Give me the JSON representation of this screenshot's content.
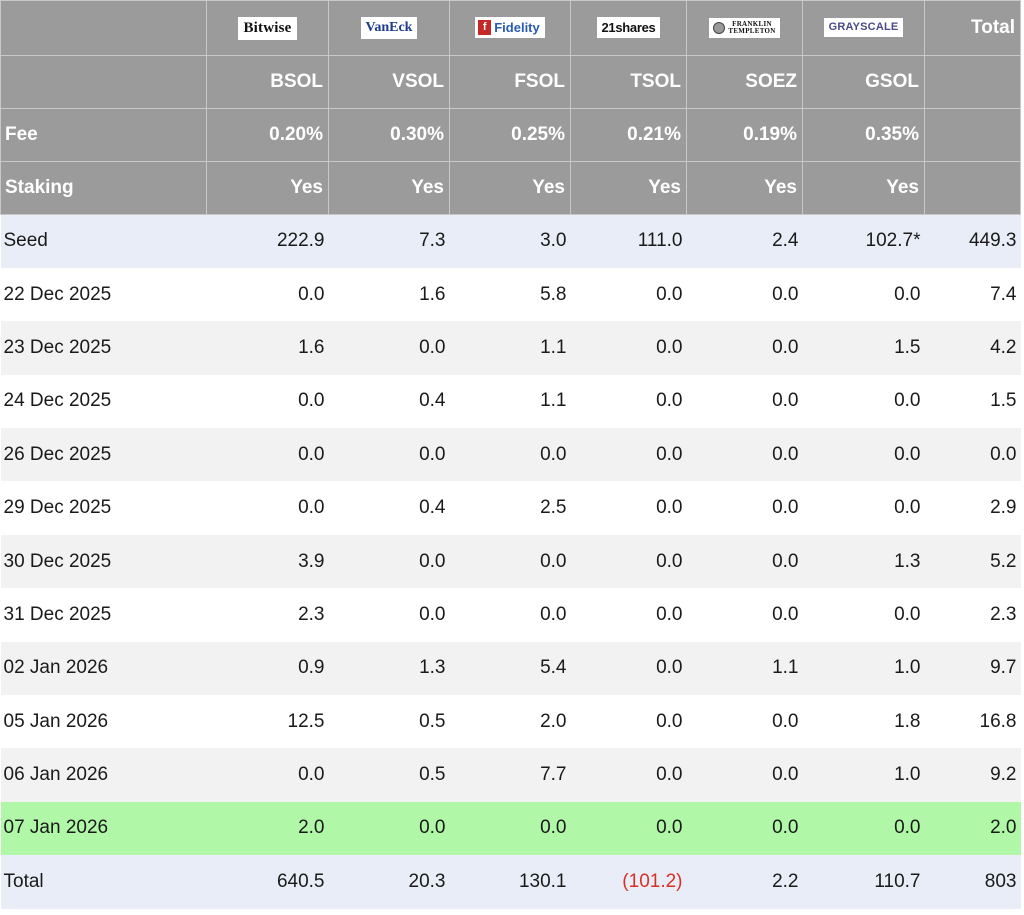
{
  "header": {
    "issuers": [
      {
        "logo_text": "Bitwise",
        "ticker": "BSOL",
        "fee": "0.20%",
        "staking": "Yes",
        "icon": "bitwise-logo"
      },
      {
        "logo_text": "VanEck",
        "ticker": "VSOL",
        "fee": "0.30%",
        "staking": "Yes",
        "icon": "vaneck-logo"
      },
      {
        "logo_text": "Fidelity",
        "ticker": "FSOL",
        "fee": "0.25%",
        "staking": "Yes",
        "icon": "fidelity-logo"
      },
      {
        "logo_text": "21shares",
        "ticker": "TSOL",
        "fee": "0.21%",
        "staking": "Yes",
        "icon": "21shares-logo"
      },
      {
        "logo_text": "FRANKLIN TEMPLETON",
        "ticker": "SOEZ",
        "fee": "0.19%",
        "staking": "Yes",
        "icon": "franklin-templeton-logo"
      },
      {
        "logo_text": "GRAYSCALE",
        "ticker": "GSOL",
        "fee": "0.35%",
        "staking": "Yes",
        "icon": "grayscale-logo"
      }
    ],
    "total_label": "Total",
    "fee_label": "Fee",
    "staking_label": "Staking"
  },
  "rows": [
    {
      "label": "Seed",
      "values": [
        "222.9",
        "7.3",
        "3.0",
        "111.0",
        "2.4",
        "102.7*"
      ],
      "total": "449.3"
    },
    {
      "label": "22 Dec 2025",
      "values": [
        "0.0",
        "1.6",
        "5.8",
        "0.0",
        "0.0",
        "0.0"
      ],
      "total": "7.4"
    },
    {
      "label": "23 Dec 2025",
      "values": [
        "1.6",
        "0.0",
        "1.1",
        "0.0",
        "0.0",
        "1.5"
      ],
      "total": "4.2"
    },
    {
      "label": "24 Dec 2025",
      "values": [
        "0.0",
        "0.4",
        "1.1",
        "0.0",
        "0.0",
        "0.0"
      ],
      "total": "1.5"
    },
    {
      "label": "26 Dec 2025",
      "values": [
        "0.0",
        "0.0",
        "0.0",
        "0.0",
        "0.0",
        "0.0"
      ],
      "total": "0.0"
    },
    {
      "label": "29 Dec 2025",
      "values": [
        "0.0",
        "0.4",
        "2.5",
        "0.0",
        "0.0",
        "0.0"
      ],
      "total": "2.9"
    },
    {
      "label": "30 Dec 2025",
      "values": [
        "3.9",
        "0.0",
        "0.0",
        "0.0",
        "0.0",
        "1.3"
      ],
      "total": "5.2"
    },
    {
      "label": "31 Dec 2025",
      "values": [
        "2.3",
        "0.0",
        "0.0",
        "0.0",
        "0.0",
        "0.0"
      ],
      "total": "2.3"
    },
    {
      "label": "02 Jan 2026",
      "values": [
        "0.9",
        "1.3",
        "5.4",
        "0.0",
        "1.1",
        "1.0"
      ],
      "total": "9.7"
    },
    {
      "label": "05 Jan 2026",
      "values": [
        "12.5",
        "0.5",
        "2.0",
        "0.0",
        "0.0",
        "1.8"
      ],
      "total": "16.8"
    },
    {
      "label": "06 Jan 2026",
      "values": [
        "0.0",
        "0.5",
        "7.7",
        "0.0",
        "0.0",
        "1.0"
      ],
      "total": "9.2"
    },
    {
      "label": "07 Jan 2026",
      "values": [
        "2.0",
        "0.0",
        "0.0",
        "0.0",
        "0.0",
        "0.0"
      ],
      "total": "2.0"
    }
  ],
  "totals": {
    "label": "Total",
    "values": [
      "640.5",
      "20.3",
      "130.1",
      "(101.2)",
      "2.2",
      "110.7"
    ],
    "total": "803"
  },
  "colors": {
    "header_bg": "#9b9b9b",
    "seed_row_bg": "#e9edf7",
    "latest_row_bg": "#b0f7a8",
    "alt_row_bg": "#f2f2f2",
    "negative_text": "#d93025",
    "fidelity_mark": "#c62828"
  }
}
